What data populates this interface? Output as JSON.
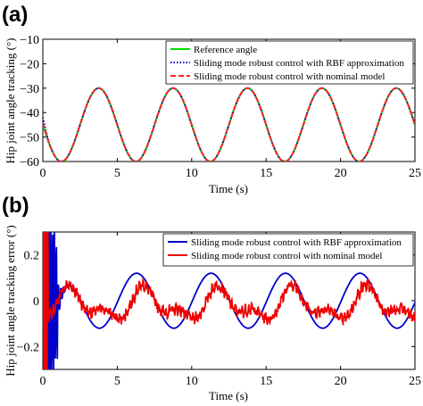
{
  "chart_data": [
    {
      "panel": "(a)",
      "type": "line",
      "xlabel": "Time (s)",
      "ylabel": "Hip joint angle tracking (°)",
      "xlim": [
        0,
        25
      ],
      "ylim": [
        -60,
        -10
      ],
      "xticks": [
        0,
        5,
        10,
        15,
        20,
        25
      ],
      "yticks": [
        -10,
        -20,
        -30,
        -40,
        -50,
        -60
      ],
      "legend_position": "top-right",
      "series": [
        {
          "name": "Reference angle",
          "color": "#00dd00",
          "style": "solid",
          "model": "sine",
          "params": {
            "offset": -45,
            "amplitude": 15,
            "period": 5,
            "phase_offset_seconds": 0
          }
        },
        {
          "name": "Sliding mode robust control with RBF approximation",
          "color": "#0000cc",
          "style": "dotted",
          "model": "sine",
          "params": {
            "offset": -45,
            "amplitude": 15,
            "period": 5,
            "phase_offset_seconds": 0
          },
          "initial_transient": {
            "start_value": -42,
            "settle_time": 0.4
          }
        },
        {
          "name": "Sliding mode robust control with nominal model",
          "color": "#ff2222",
          "style": "dashed",
          "model": "sine",
          "params": {
            "offset": -45,
            "amplitude": 15,
            "period": 5,
            "phase_offset_seconds": 0
          },
          "initial_transient": {
            "start_value": -44,
            "settle_time": 0.4
          }
        }
      ]
    },
    {
      "panel": "(b)",
      "type": "line",
      "xlabel": "Time (s)",
      "ylabel": "Hip joint angle tracking error (°)",
      "xlim": [
        0,
        25
      ],
      "ylim": [
        -0.3,
        0.3
      ],
      "xticks": [
        0,
        5,
        10,
        15,
        20,
        25
      ],
      "yticks": [
        0.2,
        0,
        -0.2
      ],
      "legend_position": "top-right",
      "series": [
        {
          "name": "Sliding mode robust control with RBF approximation",
          "color": "#0000cc",
          "style": "solid",
          "model": "damped-then-sine",
          "params": {
            "amplitude": 0.12,
            "period": 5,
            "peak_time": 1.3
          },
          "initial_transient": {
            "oscillation_amplitude": 0.5,
            "end_time": 1.0
          }
        },
        {
          "name": "Sliding mode robust control with nominal model",
          "color": "#ee0000",
          "style": "solid",
          "model": "noisy-periodic",
          "params": {
            "amplitude": 0.1,
            "period": 5,
            "peak_time": 1.9,
            "noise": 0.02
          },
          "initial_transient": {
            "spike_amplitude": 0.5,
            "end_time": 0.35
          }
        }
      ]
    }
  ]
}
